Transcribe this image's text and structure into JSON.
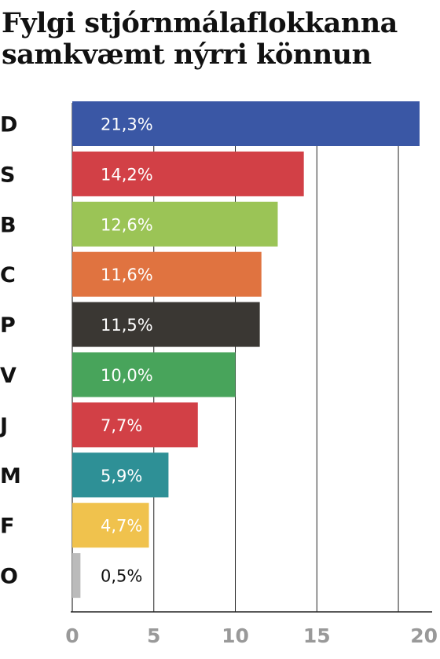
{
  "title_lines": [
    "Fylgi stjórnmálaflokkanna",
    "samkvæmt nýrri könnun"
  ],
  "chart_data": {
    "type": "bar",
    "orientation": "horizontal",
    "title": "Fylgi stjórnmálaflokkanna samkvæmt nýrri könnun",
    "categories": [
      "D",
      "S",
      "B",
      "C",
      "P",
      "V",
      "J",
      "M",
      "F",
      "O"
    ],
    "values": [
      21.3,
      14.2,
      12.6,
      11.6,
      11.5,
      10.0,
      7.7,
      5.9,
      4.7,
      0.5
    ],
    "value_labels": [
      "21,3%",
      "14,2%",
      "12,6%",
      "11,6%",
      "11,5%",
      "10,0%",
      "7,7%",
      "5,9%",
      "4,7%",
      "0,5%"
    ],
    "colors": [
      "#3a57a5",
      "#d24046",
      "#9bc456",
      "#e07340",
      "#3a3733",
      "#48a45b",
      "#d24046",
      "#2e9096",
      "#f0c24d",
      "#bbbbbb"
    ],
    "label_colors": [
      "#ffffff",
      "#ffffff",
      "#ffffff",
      "#ffffff",
      "#ffffff",
      "#ffffff",
      "#ffffff",
      "#ffffff",
      "#ffffff",
      "#111111"
    ],
    "xlim": [
      0,
      21.3
    ],
    "xticks": [
      0,
      5,
      10,
      15,
      20
    ],
    "xtick_labels": [
      "0",
      "5",
      "10",
      "15",
      "20"
    ],
    "grid": true,
    "legend": "none"
  }
}
